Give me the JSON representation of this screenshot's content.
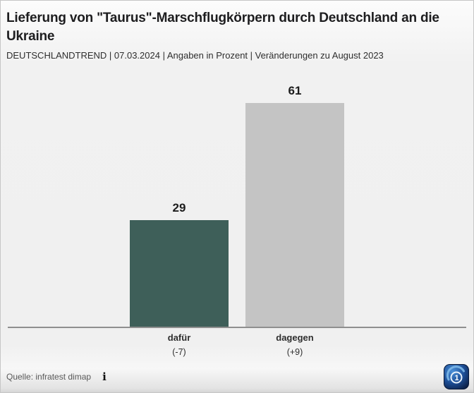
{
  "header": {
    "title": "Lieferung von \"Taurus\"-Marschflugkörpern durch Deutschland an die Ukraine",
    "subtitle": "DEUTSCHLANDTREND | 07.03.2024 | Angaben in Prozent | Veränderungen zu August 2023"
  },
  "chart_data": {
    "type": "bar",
    "title": "Lieferung von \"Taurus\"-Marschflugkörpern durch Deutschland an die Ukraine",
    "subtitle": "DEUTSCHLANDTREND | 07.03.2024 | Angaben in Prozent | Veränderungen zu August 2023",
    "categories": [
      "dafür",
      "dagegen"
    ],
    "values": [
      29,
      61
    ],
    "change_labels": [
      "(-7)",
      "(+9)"
    ],
    "bar_colors": [
      "#3e5f59",
      "#c4c4c4"
    ],
    "xlabel": "",
    "ylabel": "",
    "ylim": [
      0,
      70
    ],
    "grid": false,
    "legend": false,
    "unit": "Prozent"
  },
  "footer": {
    "source": "Quelle: infratest dimap",
    "info_icon_glyph": "i"
  },
  "logo": {
    "name": "ARD",
    "glyph": "1",
    "color_dark": "#0c1f45",
    "color_mid": "#1d4e96",
    "color_light": "#7db8e8"
  }
}
